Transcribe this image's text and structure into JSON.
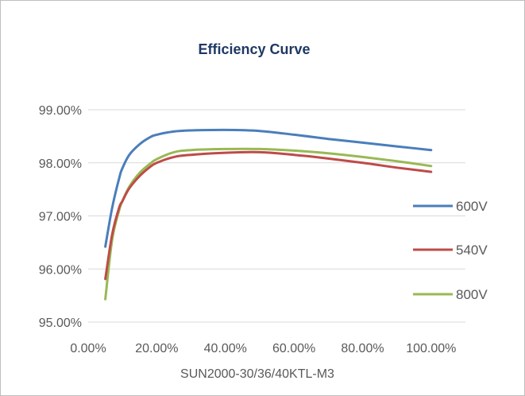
{
  "chart_data": {
    "type": "line",
    "title": "Efficiency Curve",
    "xlabel": "SUN2000-30/36/40KTL-M3",
    "ylabel": "",
    "xlim": [
      0,
      1.1
    ],
    "ylim": [
      0.95,
      0.99
    ],
    "x_ticks": [
      "0.00%",
      "20.00%",
      "40.00%",
      "60.00%",
      "80.00%",
      "100.00%"
    ],
    "y_ticks": [
      "99.00%",
      "98.00%",
      "97.00%",
      "96.00%",
      "95.00%"
    ],
    "grid": "horizontal",
    "legend": "right",
    "series": [
      {
        "name": "600V",
        "color": "#4a7ebb",
        "x": [
          0.05,
          0.07,
          0.09,
          0.1,
          0.12,
          0.15,
          0.18,
          0.2,
          0.25,
          0.3,
          0.4,
          0.5,
          0.6,
          0.7,
          0.8,
          0.9,
          1.0
        ],
        "y": [
          0.9642,
          0.9715,
          0.977,
          0.979,
          0.9815,
          0.9835,
          0.9848,
          0.9853,
          0.9859,
          0.9861,
          0.9862,
          0.986,
          0.9853,
          0.9845,
          0.9838,
          0.9831,
          0.9824
        ]
      },
      {
        "name": "540V",
        "color": "#be4b48",
        "x": [
          0.05,
          0.07,
          0.09,
          0.1,
          0.12,
          0.15,
          0.18,
          0.2,
          0.25,
          0.3,
          0.4,
          0.5,
          0.6,
          0.7,
          0.8,
          0.9,
          1.0
        ],
        "y": [
          0.9581,
          0.9665,
          0.9715,
          0.9728,
          0.9752,
          0.9775,
          0.9792,
          0.98,
          0.9811,
          0.9815,
          0.9819,
          0.982,
          0.9815,
          0.9808,
          0.98,
          0.9791,
          0.9783
        ]
      },
      {
        "name": "800V",
        "color": "#98b954",
        "x": [
          0.05,
          0.07,
          0.09,
          0.1,
          0.12,
          0.15,
          0.18,
          0.2,
          0.25,
          0.3,
          0.4,
          0.5,
          0.6,
          0.7,
          0.8,
          0.9,
          1.0
        ],
        "y": [
          0.9543,
          0.9655,
          0.971,
          0.9728,
          0.9755,
          0.9781,
          0.9798,
          0.9807,
          0.982,
          0.9824,
          0.9826,
          0.9826,
          0.9823,
          0.9818,
          0.9811,
          0.9803,
          0.9794
        ]
      }
    ]
  }
}
